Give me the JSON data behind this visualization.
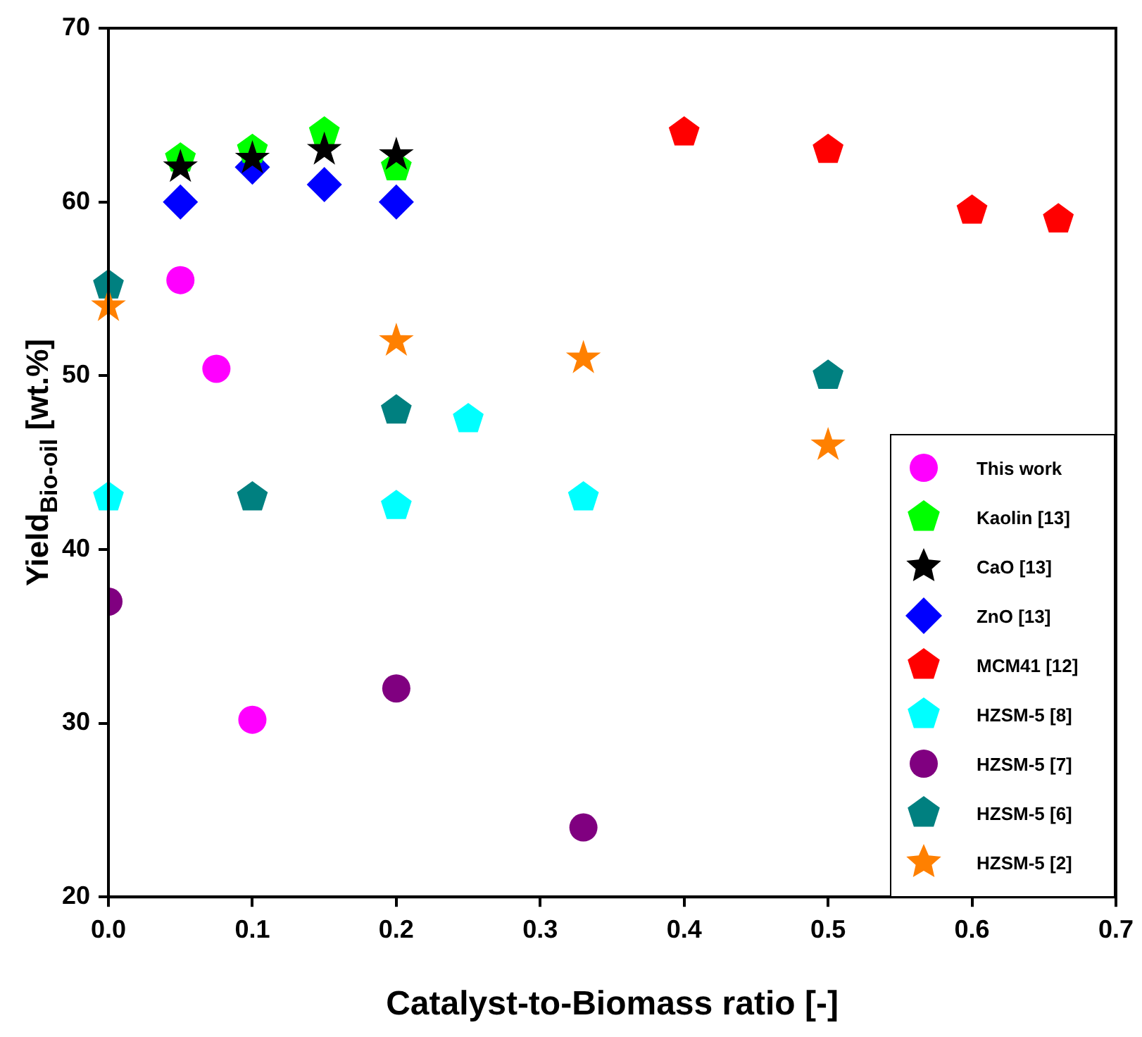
{
  "chart_data": {
    "type": "scatter",
    "xlabel": "Catalyst-to-Biomass ratio [-]",
    "ylabel": "Yield$_{Bio-oil}$ [wt.%]",
    "xlim": [
      0,
      0.7
    ],
    "xticks": [
      {
        "value": 0,
        "label": "0.0"
      },
      0.1,
      0.2,
      0.3,
      0.4,
      0.5,
      0.6,
      0.7
    ],
    "ylim": [
      20,
      70
    ],
    "yticks": [
      20,
      30,
      40,
      50,
      60,
      70
    ],
    "grid": false,
    "legend": "bottom right",
    "series": [
      {
        "name": "This work",
        "color": "#ff00ff",
        "marker": "circle",
        "x": [
          0.05,
          0.075,
          0.1
        ],
        "values": [
          55.5,
          50.4,
          30.2
        ]
      },
      {
        "name": "Kaolin [13]",
        "color": "#00ff00",
        "x": [
          0.05,
          0.1,
          0.15,
          0.2
        ],
        "values": [
          62.5,
          63,
          64,
          62
        ]
      },
      {
        "name": "CaO [13]",
        "color": "#000000",
        "marker": "star",
        "x": [
          0.05,
          0.1,
          0.15,
          0.2
        ],
        "values": [
          62,
          62.5,
          63,
          62.7
        ]
      },
      {
        "name": "ZnO [13]",
        "color": "#0000ff",
        "marker": "diamond",
        "x": [
          0.05,
          0.1,
          0.15,
          0.2
        ],
        "values": [
          60,
          62,
          61,
          60
        ]
      },
      {
        "name": "MCM41 [12]",
        "color": "#ff0000",
        "x": [
          0.4,
          0.5,
          0.6,
          0.66
        ],
        "values": [
          64,
          63,
          59.5,
          59
        ]
      },
      {
        "name": "HZSM-5 [8]",
        "color": "#00ffff",
        "x": [
          0,
          0.2,
          0.25,
          0.33
        ],
        "values": [
          43,
          42.5,
          47.5,
          43
        ]
      },
      {
        "name": "HZSM-5 [7]",
        "color": "#800080",
        "marker": "circle",
        "x": [
          0,
          0.2,
          0.33
        ],
        "values": [
          37,
          32,
          24
        ]
      },
      {
        "name": "HZSM-5 [6]",
        "color": "#008080",
        "x": [
          0,
          0.1,
          0.2,
          0.5
        ],
        "values": [
          55.2,
          43,
          48,
          50
        ]
      },
      {
        "name": "HZSM-5 [2]",
        "color": "#ff8000",
        "marker": "star",
        "x": [
          0,
          0.2,
          0.33,
          0.5
        ],
        "values": [
          54,
          52,
          51,
          46
        ]
      }
    ]
  }
}
